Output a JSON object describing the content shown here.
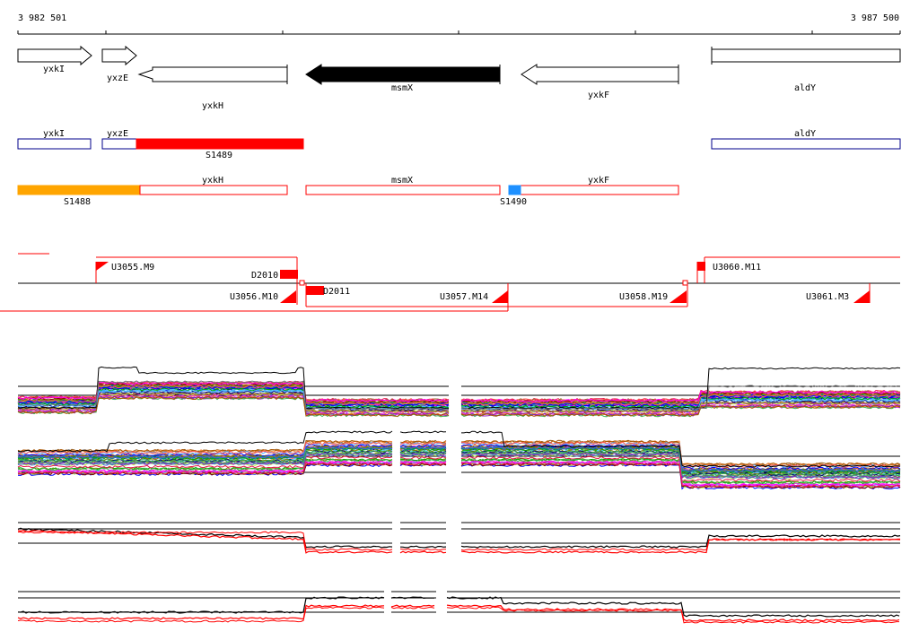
{
  "ruler": {
    "start": "3 982 501",
    "end": "3 987 500"
  },
  "colors": {
    "annotation_red": "#ff0000",
    "operon_blue": "#00008b",
    "segment_orange": "#ffa500",
    "segment_blue": "#1e90ff",
    "black": "#000000"
  },
  "genes": [
    {
      "id": "yxkI",
      "label": "yxkI",
      "strand": "+"
    },
    {
      "id": "yxzE",
      "label": "yxzE",
      "strand": "+"
    },
    {
      "id": "yxkH",
      "label": "yxkH",
      "strand": "-"
    },
    {
      "id": "msmX",
      "label": "msmX",
      "strand": "-",
      "highlighted": true
    },
    {
      "id": "yxkF",
      "label": "yxkF",
      "strand": "-"
    },
    {
      "id": "aldY",
      "label": "aldY",
      "strand": "none"
    }
  ],
  "forward_segments": [
    {
      "label": "yxkI"
    },
    {
      "label": "yxzE"
    },
    {
      "label": "S1489"
    },
    {
      "label": "aldY"
    }
  ],
  "reverse_segments": [
    {
      "label": "S1488"
    },
    {
      "label": "yxkH"
    },
    {
      "label": "msmX"
    },
    {
      "label": "yxkF"
    },
    {
      "label": "S1490"
    }
  ],
  "transcription_units": [
    {
      "label": "U3055.M9"
    },
    {
      "label": "D2010"
    },
    {
      "label": "U3060.M11"
    },
    {
      "label": "U3056.M10"
    },
    {
      "label": "D2011"
    },
    {
      "label": "U3057.M14"
    },
    {
      "label": "U3058.M19"
    },
    {
      "label": "U3061.M3"
    }
  ],
  "expression_panels": [
    {
      "name": "expression-panel-1"
    },
    {
      "name": "expression-panel-2"
    },
    {
      "name": "expression-panel-3"
    },
    {
      "name": "expression-panel-4"
    }
  ]
}
